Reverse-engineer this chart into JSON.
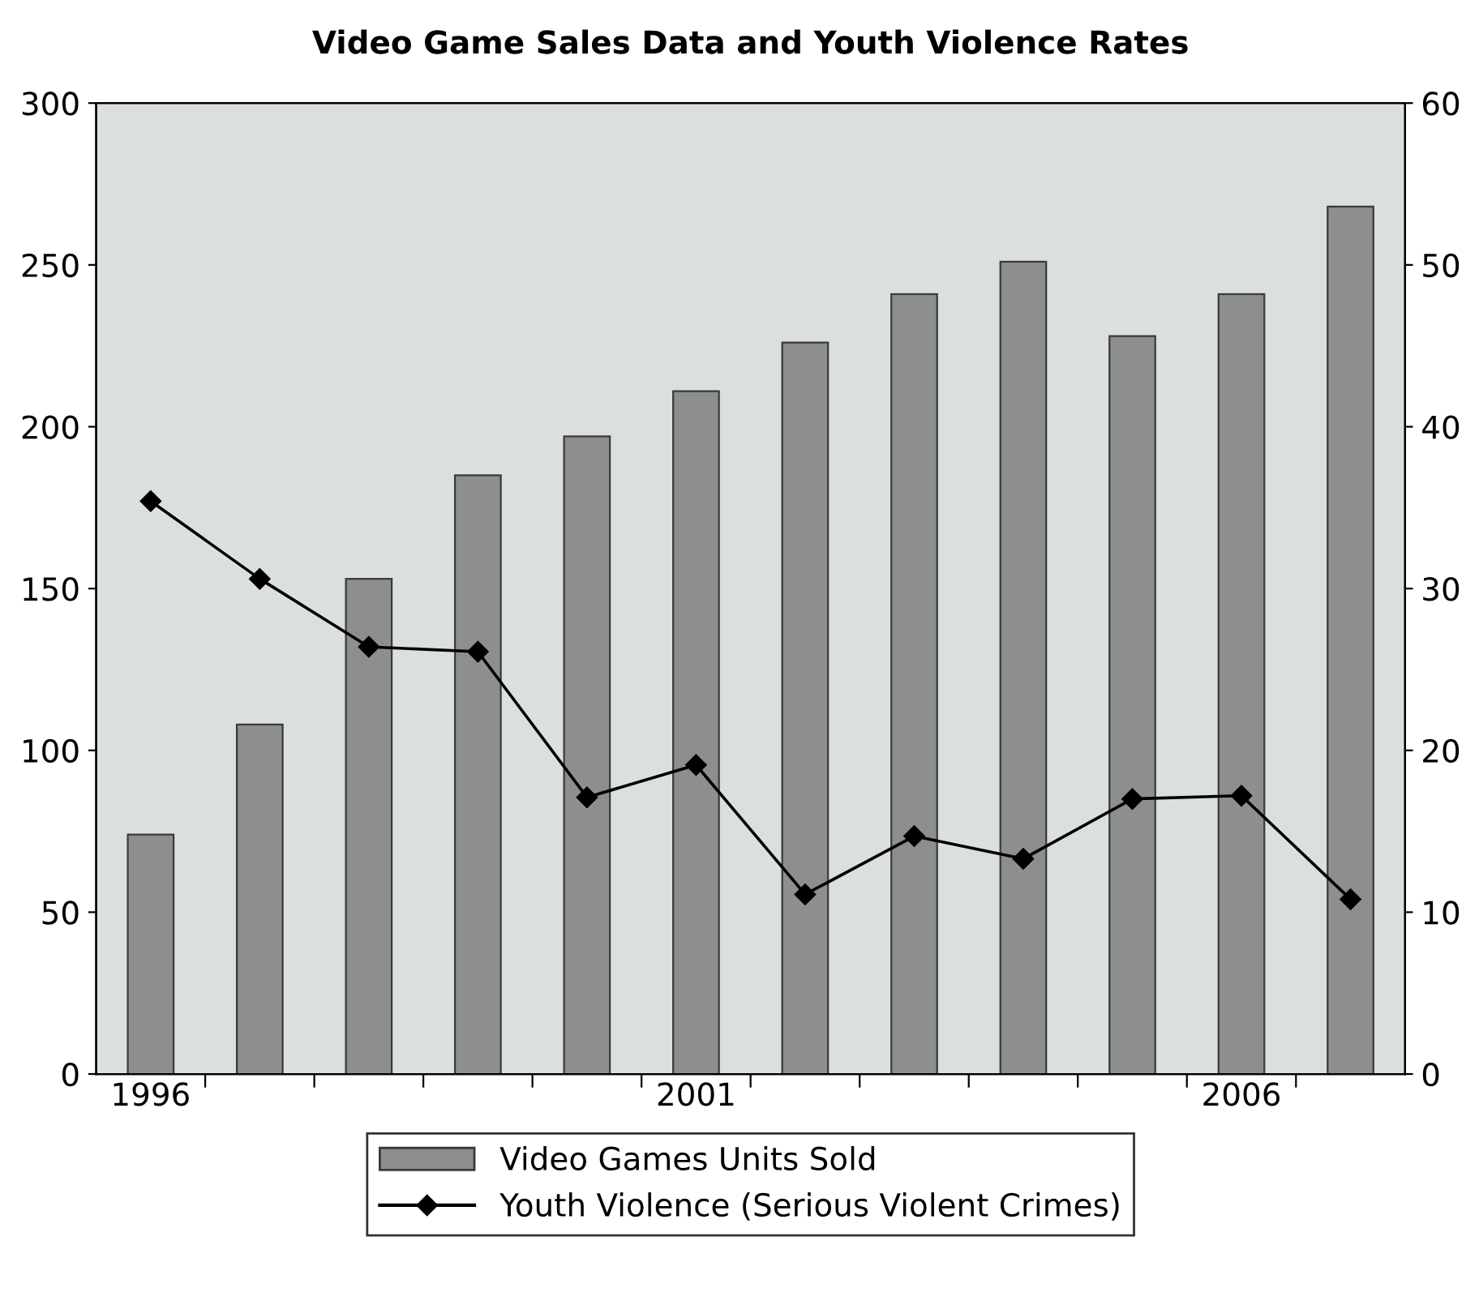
{
  "chart_data": {
    "type": "bar",
    "title": "Video Game Sales Data and Youth Violence Rates",
    "categories": [
      "1996",
      null,
      null,
      null,
      null,
      "2001",
      null,
      null,
      null,
      null,
      "2006",
      null
    ],
    "series": [
      {
        "name": "Video Games Units Sold",
        "color": "#8c8e8f",
        "values": [
          74,
          108,
          153,
          185,
          197,
          211,
          226,
          241,
          251,
          228,
          241,
          268
        ]
      },
      {
        "name": "Youth Violence (Serious Violent Crimes)",
        "type": "line",
        "axis": "y2",
        "color": "#000000",
        "marker": "diamond",
        "values": [
          35.4,
          30.6,
          26.4,
          26.1,
          17.1,
          19.1,
          11.1,
          14.7,
          13.3,
          17.0,
          17.2,
          10.8
        ]
      }
    ],
    "ylim": [
      0,
      300
    ],
    "yticks": [
      0,
      50,
      100,
      150,
      200,
      250,
      300
    ],
    "y2lim": [
      0,
      60
    ],
    "y2ticks": [
      0,
      10,
      20,
      30,
      40,
      50,
      60
    ],
    "grid": false,
    "legend": "bottom"
  }
}
